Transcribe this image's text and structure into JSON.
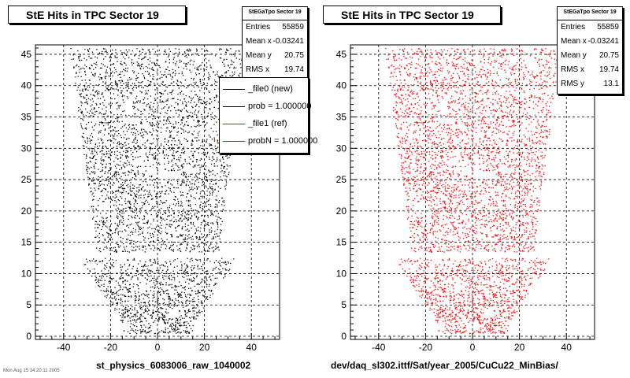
{
  "chart_data": [
    {
      "type": "scatter",
      "title": "StE Hits in TPC Sector 19",
      "caption": "st_physics_6083006_raw_1040002",
      "marker_color": "#000000",
      "x_ticks": [
        -40,
        -20,
        0,
        20,
        40
      ],
      "y_ticks": [
        0,
        5,
        10,
        15,
        20,
        25,
        30,
        35,
        40,
        45
      ],
      "xlim": [
        -52,
        52
      ],
      "ylim": [
        -0.5,
        46.5
      ],
      "grid": true,
      "stats": {
        "header": "StEGaTpo Sector 19",
        "rows": [
          {
            "label": "Entries",
            "value": "55859"
          },
          {
            "label": "Mean x",
            "value": "-0.03241"
          },
          {
            "label": "Mean y",
            "value": "20.75"
          },
          {
            "label": "RMS x",
            "value": "19.74"
          }
        ]
      },
      "legend": {
        "placement": "top-right",
        "entries": [
          {
            "label": "_file0 (new)",
            "color": "#000000"
          },
          {
            "label": "prob = 1.000000",
            "color": "#000000"
          },
          {
            "label": "_file1 (ref)",
            "color": "#ff0000"
          },
          {
            "label": "probN = 1.000000",
            "color": "#ff0000"
          }
        ]
      }
    },
    {
      "type": "scatter",
      "title": "StE Hits in TPC Sector 19",
      "caption": "dev/daq_sl302.ittf/Sat/year_2005/CuCu22_MinBias/",
      "marker_color": "#ff0000",
      "x_ticks": [
        -40,
        -20,
        0,
        20,
        40
      ],
      "y_ticks": [
        0,
        5,
        10,
        15,
        20,
        25,
        30,
        35,
        40,
        45
      ],
      "xlim": [
        -52,
        52
      ],
      "ylim": [
        -0.5,
        46.5
      ],
      "grid": true,
      "stats": {
        "header": "StEGaTpo Sector 19",
        "rows": [
          {
            "label": "Entries",
            "value": "55859"
          },
          {
            "label": "Mean x",
            "value": "-0.03241"
          },
          {
            "label": "Mean y",
            "value": "20.75"
          },
          {
            "label": "RMS x",
            "value": "19.74"
          },
          {
            "label": "RMS y",
            "value": "13.1"
          }
        ]
      }
    }
  ],
  "footer_note": "Mon Aug 15 14:20:11 2005"
}
